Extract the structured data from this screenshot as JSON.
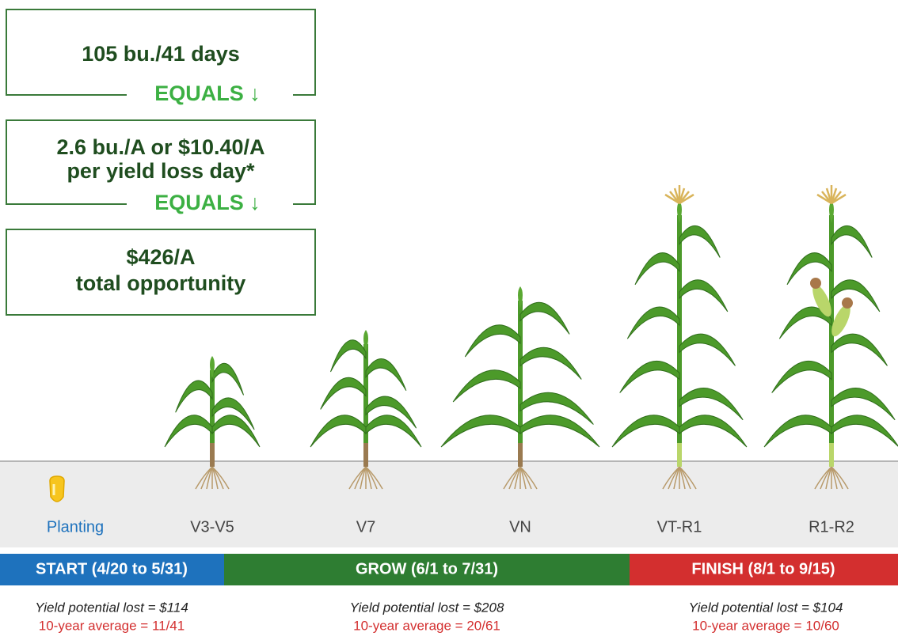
{
  "boxes": [
    {
      "lines": [
        "105 bu./41 days"
      ],
      "connector": "EQUALS ↓"
    },
    {
      "lines": [
        "2.6 bu./A or $10.40/A",
        "per yield loss day*"
      ],
      "connector": "EQUALS ↓"
    },
    {
      "lines": [
        "$426/A",
        "total opportunity"
      ]
    }
  ],
  "stages": [
    "Planting",
    "V3-V5",
    "V7",
    "VN",
    "VT-R1",
    "R1-R2"
  ],
  "phases": [
    {
      "label": "START (4/20 to 5/31)",
      "lost": "Yield potential lost = $114",
      "average": "10-year average = 11/41"
    },
    {
      "label": "GROW (6/1 to 7/31)",
      "lost": "Yield potential lost = $208",
      "average": "10-year average = 20/61"
    },
    {
      "label": "FINISH (8/1 to 9/15)",
      "lost": "Yield potential lost = $104",
      "average": "10-year average = 10/60"
    }
  ]
}
